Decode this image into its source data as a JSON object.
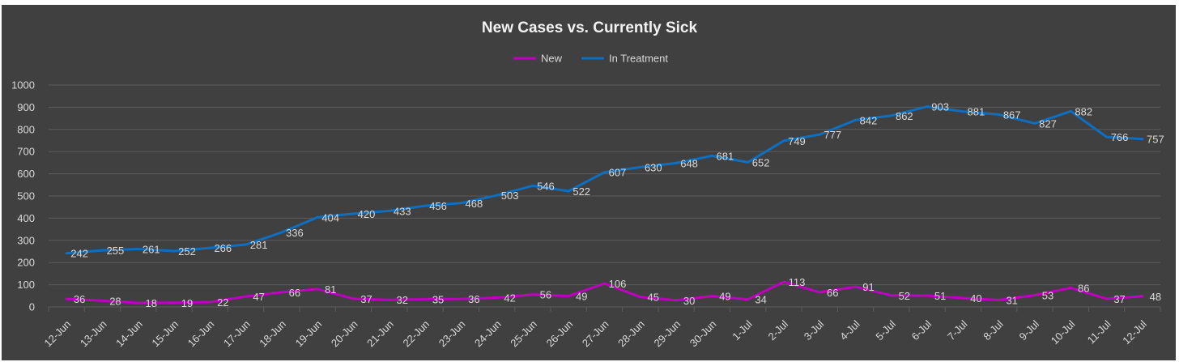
{
  "chart_data": {
    "type": "line",
    "title": "New Cases vs. Currently Sick",
    "xlabel": "",
    "ylabel": "",
    "ylim": [
      0,
      1000
    ],
    "yticks": [
      "0",
      "100",
      "200",
      "300",
      "400",
      "500",
      "600",
      "700",
      "800",
      "900",
      "1000"
    ],
    "grid": true,
    "legend": "top-center",
    "categories": [
      "12-Jun",
      "13-Jun",
      "14-Jun",
      "15-Jun",
      "16-Jun",
      "17-Jun",
      "18-Jun",
      "19-Jun",
      "20-Jun",
      "21-Jun",
      "22-Jun",
      "23-Jun",
      "24-Jun",
      "25-Jun",
      "26-Jun",
      "27-Jun",
      "28-Jun",
      "29-Jun",
      "30-Jun",
      "1-Jul",
      "2-Jul",
      "3-Jul",
      "4-Jul",
      "5-Jul",
      "6-Jul",
      "7-Jul",
      "8-Jul",
      "9-Jul",
      "10-Jul",
      "11-Jul",
      "12-Jul"
    ],
    "series": [
      {
        "name": "New",
        "color": "#c000c0",
        "values": [
          36,
          28,
          18,
          19,
          22,
          47,
          66,
          81,
          37,
          32,
          35,
          36,
          42,
          56,
          49,
          106,
          45,
          30,
          49,
          34,
          113,
          66,
          91,
          52,
          51,
          40,
          31,
          53,
          86,
          37,
          48
        ]
      },
      {
        "name": "In Treatment",
        "color": "#0e6fc1",
        "values": [
          242,
          255,
          261,
          252,
          266,
          281,
          336,
          404,
          420,
          433,
          456,
          468,
          503,
          546,
          522,
          607,
          630,
          648,
          681,
          652,
          749,
          777,
          842,
          862,
          903,
          881,
          867,
          827,
          882,
          766,
          757
        ]
      }
    ]
  }
}
